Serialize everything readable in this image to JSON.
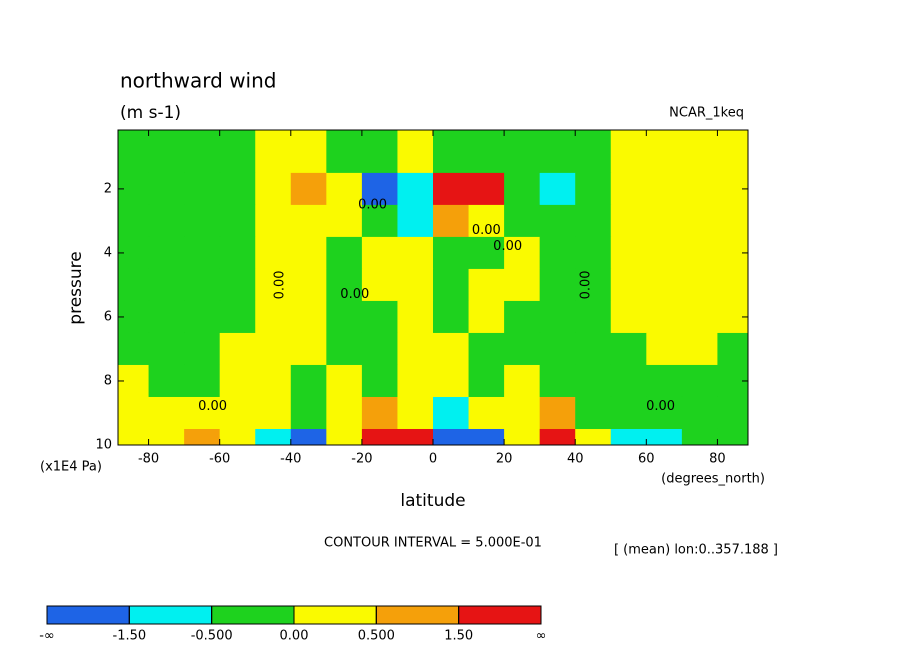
{
  "chart_data": {
    "type": "contour",
    "title": "northward wind",
    "subtitle": "(m s-1)",
    "source": "NCAR_1keq",
    "ylabel": "pressure",
    "yunit": "(x1E4 Pa)",
    "xlabel": "latitude",
    "xunit": "(degrees_north)",
    "footnote": "CONTOUR INTERVAL = 5.000E-01",
    "note": "[ (mean) lon:0..357.188 ]",
    "xlim": [
      -88.6,
      88.6
    ],
    "ylim": [
      10,
      0.16
    ],
    "xticks": [
      -80,
      -60,
      -40,
      -20,
      0,
      20,
      40,
      60,
      80
    ],
    "yticks": [
      2,
      4,
      6,
      8,
      10
    ],
    "x": [
      -85,
      -75,
      -65,
      -55,
      -45,
      -35,
      -25,
      -15,
      -5,
      5,
      15,
      25,
      35,
      45,
      55,
      65,
      75,
      85
    ],
    "y": [
      1,
      2,
      3,
      4,
      5,
      6,
      7,
      8,
      9,
      10
    ],
    "values": [
      [
        -0.2,
        -0.2,
        -0.2,
        -0.2,
        0.2,
        0.2,
        -0.2,
        -0.2,
        0.2,
        -0.2,
        -0.2,
        -0.2,
        -0.2,
        -0.2,
        0.2,
        0.2,
        0.2,
        0.2
      ],
      [
        -0.2,
        -0.2,
        -0.2,
        -0.2,
        0.2,
        1,
        0.2,
        -2,
        -1,
        2,
        2,
        -0.2,
        -1,
        -0.2,
        0.2,
        0.2,
        0.2,
        0.2
      ],
      [
        -0.2,
        -0.2,
        -0.2,
        -0.2,
        0.2,
        0.2,
        0.2,
        -0.2,
        -1,
        1,
        0.2,
        -0.2,
        -0.2,
        -0.2,
        0.2,
        0.2,
        0.2,
        0.2
      ],
      [
        -0.2,
        -0.2,
        -0.2,
        -0.2,
        0.2,
        0.2,
        -0.2,
        0.2,
        0.2,
        -0.2,
        -0.2,
        0.2,
        -0.2,
        -0.2,
        0.2,
        0.2,
        0.2,
        0.2
      ],
      [
        -0.2,
        -0.2,
        -0.2,
        -0.2,
        0.2,
        0.2,
        -0.2,
        0.2,
        0.2,
        -0.2,
        0.2,
        0.2,
        -0.2,
        -0.2,
        0.2,
        0.2,
        0.2,
        0.2
      ],
      [
        -0.2,
        -0.2,
        -0.2,
        -0.2,
        0.2,
        0.2,
        -0.2,
        -0.2,
        0.2,
        -0.2,
        0.2,
        -0.2,
        -0.2,
        -0.2,
        0.2,
        0.2,
        0.2,
        0.2
      ],
      [
        -0.2,
        -0.2,
        -0.2,
        0.2,
        0.2,
        0.2,
        -0.2,
        -0.2,
        0.2,
        0.2,
        -0.2,
        -0.2,
        -0.2,
        -0.2,
        -0.2,
        0.2,
        0.2,
        -0.2
      ],
      [
        0.2,
        -0.2,
        -0.2,
        0.2,
        0.2,
        -0.2,
        0.2,
        -0.2,
        0.2,
        0.2,
        -0.2,
        0.2,
        -0.2,
        -0.2,
        -0.2,
        -0.2,
        -0.2,
        -0.2
      ],
      [
        0.2,
        0.2,
        0.2,
        0.2,
        0.2,
        -0.2,
        0.2,
        1,
        0.2,
        -1,
        0.2,
        0.2,
        1,
        -0.2,
        -0.2,
        -0.2,
        -0.2,
        -0.2
      ],
      [
        0.2,
        0.2,
        1,
        0.2,
        -1,
        -2,
        0.2,
        2,
        2,
        -2,
        -2,
        0.2,
        2,
        0.2,
        -1,
        -1,
        -0.2,
        -0.2
      ]
    ],
    "levels": [
      {
        "value": -1.5,
        "label": "-1.50"
      },
      {
        "value": -0.5,
        "label": "-0.500"
      },
      {
        "value": 0,
        "label": "0.00"
      },
      {
        "value": 0.5,
        "label": "0.500"
      },
      {
        "value": 1.5,
        "label": "1.50"
      }
    ],
    "colorbar_ends": [
      "-∞",
      "∞"
    ],
    "colors": [
      "#1e64e6",
      "#00f0f0",
      "#1ed21e",
      "#fafa00",
      "#f5a00a",
      "#e61414"
    ],
    "contour_labels": [
      {
        "label": "0.00",
        "x": -43,
        "y": 5
      },
      {
        "label": "0.00",
        "x": -22,
        "y": 5.3
      },
      {
        "label": "0.00",
        "x": -17,
        "y": 2.5
      },
      {
        "label": "0.00",
        "x": 15,
        "y": 3.3
      },
      {
        "label": "0.00",
        "x": 21,
        "y": 3.8
      },
      {
        "label": "0.00",
        "x": 43,
        "y": 5
      },
      {
        "label": "0.00",
        "x": -62,
        "y": 8.8
      },
      {
        "label": "0.00",
        "x": 64,
        "y": 8.8
      }
    ]
  }
}
